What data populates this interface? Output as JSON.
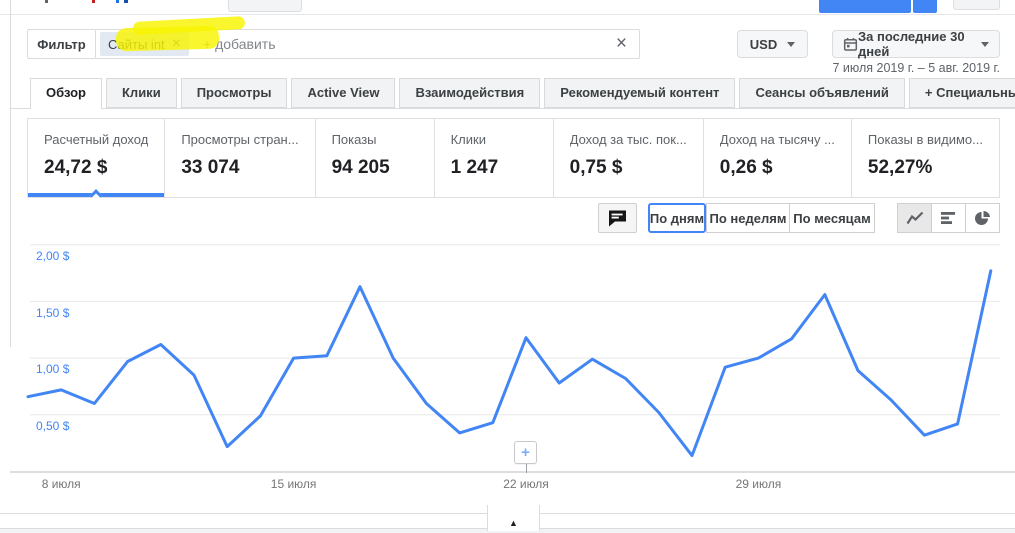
{
  "filter_bar": {
    "label": "Фильтр",
    "chip": {
      "text": "Сайты int",
      "remove_icon": "×"
    },
    "add_placeholder": "+ добавить",
    "clear_icon": "×"
  },
  "currency_selector": {
    "value": "USD"
  },
  "date_selector": {
    "label": "За последние 30 дней",
    "range_text": "7 июля 2019 г. – 5 авг. 2019 г."
  },
  "tabs": [
    {
      "label": "Обзор",
      "active": true
    },
    {
      "label": "Клики",
      "active": false
    },
    {
      "label": "Просмотры",
      "active": false
    },
    {
      "label": "Active View",
      "active": false
    },
    {
      "label": "Взаимодействия",
      "active": false
    },
    {
      "label": "Рекомендуемый контент",
      "active": false
    },
    {
      "label": "Сеансы объявлений",
      "active": false
    },
    {
      "label": "+ Специальные",
      "active": false
    }
  ],
  "metrics": [
    {
      "label": "Расчетный доход",
      "value": "24,72 $",
      "active": true
    },
    {
      "label": "Просмотры стран...",
      "value": "33 074",
      "active": false
    },
    {
      "label": "Показы",
      "value": "94 205",
      "active": false
    },
    {
      "label": "Клики",
      "value": "1 247",
      "active": false
    },
    {
      "label": "Доход за тыс. пок...",
      "value": "0,75 $",
      "active": false
    },
    {
      "label": "Доход на тысячу ...",
      "value": "0,26 $",
      "active": false
    },
    {
      "label": "Показы в видимо...",
      "value": "52,27%",
      "active": false
    }
  ],
  "chart_controls": {
    "comment_icon": "speech-bubble",
    "granularity": [
      {
        "label": "По дням",
        "active": true
      },
      {
        "label": "По неделям",
        "active": false
      },
      {
        "label": "По месяцам",
        "active": false
      }
    ],
    "chart_types": [
      "line",
      "bar",
      "pie"
    ],
    "active_chart_type": "line"
  },
  "chart_data": {
    "type": "line",
    "series_name": "Расчетный доход",
    "unit": "$",
    "line_color": "#4285f4",
    "grid": "horizontal",
    "ylim": [
      0,
      2.06
    ],
    "y_tick_labels": [
      "2,00 $",
      "1,50 $",
      "1,00 $",
      "0,50 $"
    ],
    "y_tick_values": [
      2.0,
      1.5,
      1.0,
      0.5
    ],
    "x_tick_labels": [
      "8 июля",
      "15 июля",
      "22 июля",
      "29 июля"
    ],
    "x_tick_indices": [
      1,
      8,
      15,
      22
    ],
    "dates": [
      "2019-07-07",
      "2019-07-08",
      "2019-07-09",
      "2019-07-10",
      "2019-07-11",
      "2019-07-12",
      "2019-07-13",
      "2019-07-14",
      "2019-07-15",
      "2019-07-16",
      "2019-07-17",
      "2019-07-18",
      "2019-07-19",
      "2019-07-20",
      "2019-07-21",
      "2019-07-22",
      "2019-07-23",
      "2019-07-24",
      "2019-07-25",
      "2019-07-26",
      "2019-07-27",
      "2019-07-28",
      "2019-07-29",
      "2019-07-30",
      "2019-07-31",
      "2019-08-01",
      "2019-08-02",
      "2019-08-03",
      "2019-08-04",
      "2019-08-05"
    ],
    "values": [
      0.66,
      0.72,
      0.6,
      0.97,
      1.12,
      0.85,
      0.22,
      0.49,
      1.0,
      1.02,
      1.63,
      1.0,
      0.6,
      0.34,
      0.43,
      1.18,
      0.78,
      0.99,
      0.82,
      0.52,
      0.14,
      0.92,
      1.0,
      1.17,
      1.56,
      0.89,
      0.63,
      0.32,
      0.42,
      1.77
    ],
    "annotation_marker": {
      "icon": "+",
      "date": "2019-07-22"
    }
  },
  "footer": {
    "collapse_icon": "▲"
  }
}
